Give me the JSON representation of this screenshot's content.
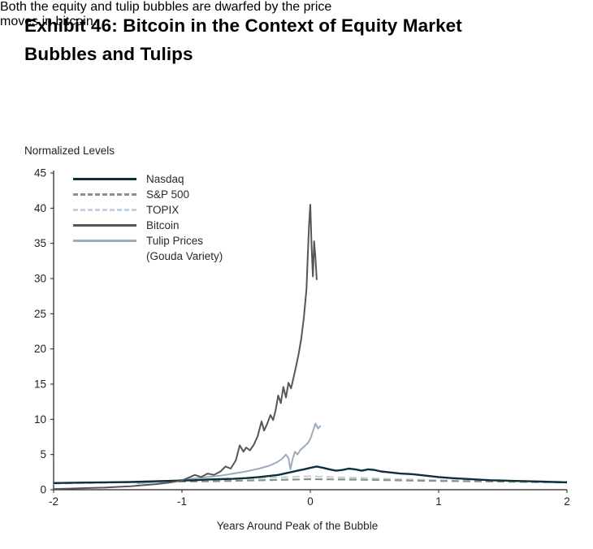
{
  "header": {
    "title_line1": "Exhibit 46: Bitcoin in the Context of Equity Market",
    "title_line2": "Bubbles and Tulips",
    "subtitle_line1": "Both the equity and tulip bubbles are dwarfed by the price",
    "subtitle_line2": "moves in bitcoin."
  },
  "chart_data": {
    "type": "line",
    "title": "Exhibit 46: Bitcoin in the Context of Equity Market Bubbles and Tulips",
    "subtitle": "Both the equity and tulip bubbles are dwarfed by the price moves in bitcoin.",
    "ylabel": "Normalized Levels",
    "xlabel": "Years Around Peak of the Bubble",
    "xlim": [
      -2,
      2
    ],
    "ylim": [
      0,
      45
    ],
    "x_ticks": [
      -2,
      -1,
      0,
      1,
      2
    ],
    "y_ticks": [
      0,
      5,
      10,
      15,
      20,
      25,
      30,
      35,
      40,
      45
    ],
    "grid": false,
    "legend_position": "top-left-inside",
    "axis_color": "#231f20",
    "series": [
      {
        "id": "nasdaq",
        "name": "Nasdaq",
        "color": "#0e2f3c",
        "dash": null,
        "width": 2.4,
        "points": [
          [
            -2,
            0.95
          ],
          [
            -1.8,
            1.0
          ],
          [
            -1.6,
            1.05
          ],
          [
            -1.4,
            1.1
          ],
          [
            -1.2,
            1.2
          ],
          [
            -1.0,
            1.3
          ],
          [
            -0.9,
            1.35
          ],
          [
            -0.8,
            1.45
          ],
          [
            -0.7,
            1.5
          ],
          [
            -0.6,
            1.55
          ],
          [
            -0.5,
            1.65
          ],
          [
            -0.4,
            1.8
          ],
          [
            -0.3,
            2.0
          ],
          [
            -0.25,
            2.1
          ],
          [
            -0.2,
            2.3
          ],
          [
            -0.15,
            2.5
          ],
          [
            -0.1,
            2.7
          ],
          [
            -0.05,
            2.9
          ],
          [
            0,
            3.1
          ],
          [
            0.05,
            3.3
          ],
          [
            0.1,
            3.1
          ],
          [
            0.15,
            2.9
          ],
          [
            0.2,
            2.7
          ],
          [
            0.25,
            2.8
          ],
          [
            0.3,
            3.0
          ],
          [
            0.35,
            2.9
          ],
          [
            0.4,
            2.7
          ],
          [
            0.45,
            2.9
          ],
          [
            0.5,
            2.8
          ],
          [
            0.55,
            2.6
          ],
          [
            0.6,
            2.5
          ],
          [
            0.7,
            2.3
          ],
          [
            0.8,
            2.2
          ],
          [
            0.9,
            2.0
          ],
          [
            1.0,
            1.8
          ],
          [
            1.1,
            1.65
          ],
          [
            1.2,
            1.55
          ],
          [
            1.3,
            1.45
          ],
          [
            1.4,
            1.35
          ],
          [
            1.5,
            1.3
          ],
          [
            1.6,
            1.25
          ],
          [
            1.7,
            1.2
          ],
          [
            1.8,
            1.15
          ],
          [
            1.9,
            1.1
          ],
          [
            2,
            1.05
          ]
        ]
      },
      {
        "id": "sp500",
        "name": "S&P 500",
        "color": "#8a9384",
        "dash": "9,5",
        "width": 2.2,
        "points": [
          [
            -2,
            0.95
          ],
          [
            -1.75,
            1.0
          ],
          [
            -1.5,
            1.05
          ],
          [
            -1.25,
            1.1
          ],
          [
            -1,
            1.15
          ],
          [
            -0.75,
            1.2
          ],
          [
            -0.5,
            1.3
          ],
          [
            -0.25,
            1.4
          ],
          [
            0,
            1.5
          ],
          [
            0.25,
            1.45
          ],
          [
            0.5,
            1.4
          ],
          [
            0.75,
            1.3
          ],
          [
            1,
            1.25
          ],
          [
            1.25,
            1.2
          ],
          [
            1.5,
            1.15
          ],
          [
            1.75,
            1.1
          ],
          [
            2,
            1.1
          ]
        ]
      },
      {
        "id": "topix",
        "name": "TOPIX",
        "color": "#c3d2e0",
        "dash": "9,5",
        "width": 2.2,
        "points": [
          [
            -2,
            0.85
          ],
          [
            -1.75,
            0.95
          ],
          [
            -1.5,
            1.05
          ],
          [
            -1.25,
            1.15
          ],
          [
            -1,
            1.3
          ],
          [
            -0.75,
            1.45
          ],
          [
            -0.5,
            1.6
          ],
          [
            -0.25,
            1.75
          ],
          [
            0,
            1.9
          ],
          [
            0.25,
            1.75
          ],
          [
            0.5,
            1.6
          ],
          [
            0.75,
            1.45
          ],
          [
            1,
            1.35
          ],
          [
            1.25,
            1.25
          ],
          [
            1.5,
            1.15
          ],
          [
            1.75,
            1.05
          ],
          [
            2,
            1.0
          ]
        ]
      },
      {
        "id": "bitcoin",
        "name": "Bitcoin",
        "color": "#55565a",
        "dash": null,
        "width": 2,
        "points": [
          [
            -2,
            0.1
          ],
          [
            -1.9,
            0.15
          ],
          [
            -1.8,
            0.2
          ],
          [
            -1.7,
            0.25
          ],
          [
            -1.6,
            0.3
          ],
          [
            -1.5,
            0.4
          ],
          [
            -1.4,
            0.5
          ],
          [
            -1.3,
            0.65
          ],
          [
            -1.2,
            0.8
          ],
          [
            -1.1,
            1.0
          ],
          [
            -1.0,
            1.3
          ],
          [
            -0.95,
            1.7
          ],
          [
            -0.9,
            2.1
          ],
          [
            -0.85,
            1.8
          ],
          [
            -0.8,
            2.3
          ],
          [
            -0.75,
            2.1
          ],
          [
            -0.7,
            2.6
          ],
          [
            -0.66,
            3.3
          ],
          [
            -0.62,
            3.0
          ],
          [
            -0.58,
            4.2
          ],
          [
            -0.55,
            6.3
          ],
          [
            -0.52,
            5.4
          ],
          [
            -0.5,
            6.0
          ],
          [
            -0.47,
            5.6
          ],
          [
            -0.44,
            6.4
          ],
          [
            -0.41,
            7.6
          ],
          [
            -0.38,
            9.7
          ],
          [
            -0.36,
            8.4
          ],
          [
            -0.34,
            9.2
          ],
          [
            -0.31,
            10.6
          ],
          [
            -0.29,
            9.9
          ],
          [
            -0.27,
            11.3
          ],
          [
            -0.25,
            13.4
          ],
          [
            -0.23,
            12.3
          ],
          [
            -0.21,
            14.6
          ],
          [
            -0.19,
            13.1
          ],
          [
            -0.17,
            15.2
          ],
          [
            -0.15,
            14.4
          ],
          [
            -0.13,
            16.0
          ],
          [
            -0.11,
            17.6
          ],
          [
            -0.09,
            19.4
          ],
          [
            -0.07,
            21.5
          ],
          [
            -0.05,
            24.5
          ],
          [
            -0.03,
            28.5
          ],
          [
            -0.02,
            33.0
          ],
          [
            -0.01,
            37.5
          ],
          [
            0,
            40.5
          ],
          [
            0.01,
            34.5
          ],
          [
            0.02,
            30.3
          ],
          [
            0.03,
            35.3
          ],
          [
            0.04,
            33.0
          ],
          [
            0.05,
            29.8
          ]
        ]
      },
      {
        "id": "tulip",
        "name": "Tulip Prices",
        "name2": "(Gouda Variety)",
        "color": "#9dacbd",
        "dash": null,
        "width": 2,
        "points": [
          [
            -1.35,
            0.9
          ],
          [
            -1.2,
            1.1
          ],
          [
            -1.05,
            1.3
          ],
          [
            -0.9,
            1.6
          ],
          [
            -0.8,
            1.8
          ],
          [
            -0.7,
            2.0
          ],
          [
            -0.6,
            2.3
          ],
          [
            -0.5,
            2.6
          ],
          [
            -0.4,
            3.0
          ],
          [
            -0.32,
            3.4
          ],
          [
            -0.26,
            3.9
          ],
          [
            -0.22,
            4.4
          ],
          [
            -0.19,
            5.0
          ],
          [
            -0.17,
            4.5
          ],
          [
            -0.155,
            2.9
          ],
          [
            -0.14,
            4.2
          ],
          [
            -0.12,
            5.4
          ],
          [
            -0.1,
            5.0
          ],
          [
            -0.08,
            5.6
          ],
          [
            -0.05,
            6.1
          ],
          [
            -0.02,
            6.6
          ],
          [
            0,
            7.2
          ],
          [
            0.02,
            8.3
          ],
          [
            0.04,
            9.4
          ],
          [
            0.06,
            8.7
          ],
          [
            0.08,
            9.1
          ]
        ]
      }
    ]
  }
}
